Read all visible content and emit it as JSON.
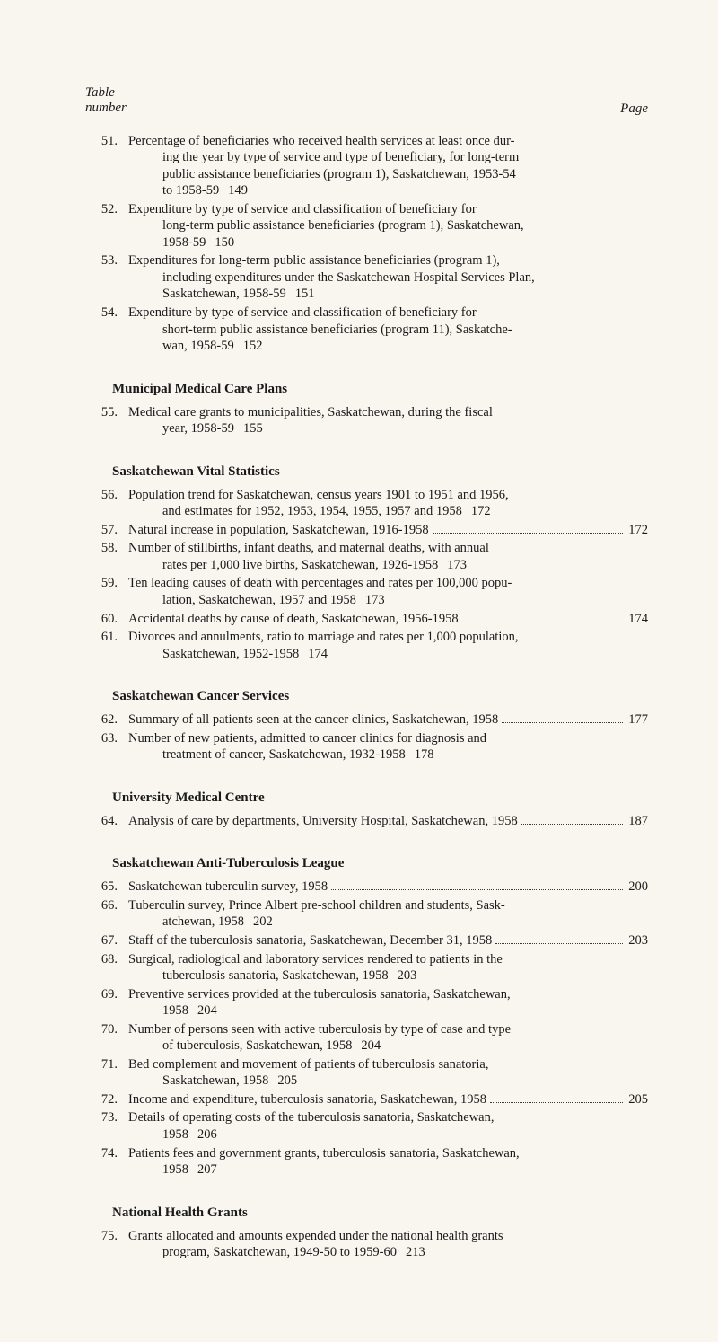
{
  "header": {
    "top_left_line1": "Table",
    "top_left_line2": "number",
    "top_right": "Page"
  },
  "sections": [
    {
      "entries": [
        {
          "num": "51.",
          "lines": [
            "Percentage of beneficiaries who received health services at least once dur-",
            "ing the year by type of service and type of beneficiary, for long-term",
            "public assistance beneficiaries (program 1), Saskatchewan, 1953-54"
          ],
          "last": "to 1958-59",
          "page": "149"
        },
        {
          "num": "52.",
          "lines": [
            "Expenditure by type of service and classification of beneficiary for",
            "long-term public assistance beneficiaries (program 1), Saskatchewan,"
          ],
          "last": "1958-59",
          "page": "150"
        },
        {
          "num": "53.",
          "lines": [
            "Expenditures for long-term public assistance beneficiaries (program 1),",
            "including expenditures under the Saskatchewan Hospital Services Plan,"
          ],
          "last": "Saskatchewan, 1958-59",
          "page": "151"
        },
        {
          "num": "54.",
          "lines": [
            "Expenditure by type of service and classification of beneficiary for",
            "short-term public assistance beneficiaries (program 11), Saskatche-"
          ],
          "last": "wan, 1958-59",
          "page": "152"
        }
      ]
    },
    {
      "title": "Municipal Medical Care Plans",
      "entries": [
        {
          "num": "55.",
          "lines": [
            "Medical care grants to municipalities, Saskatchewan, during the fiscal"
          ],
          "last": "year, 1958-59",
          "page": "155"
        }
      ]
    },
    {
      "title": "Saskatchewan Vital Statistics",
      "entries": [
        {
          "num": "56.",
          "lines": [
            "Population trend for Saskatchewan, census years 1901 to 1951 and 1956,"
          ],
          "last": "and estimates for 1952, 1953, 1954, 1955, 1957 and 1958",
          "page": "172"
        },
        {
          "num": "57.",
          "lines": [],
          "last": "Natural increase in population, Saskatchewan, 1916-1958",
          "page": "172"
        },
        {
          "num": "58.",
          "lines": [
            "Number of stillbirths, infant deaths, and maternal deaths, with annual"
          ],
          "last": "rates per 1,000 live births, Saskatchewan, 1926-1958",
          "page": "173"
        },
        {
          "num": "59.",
          "lines": [
            "Ten leading causes of death with percentages and rates per 100,000 popu-"
          ],
          "last": "lation, Saskatchewan, 1957 and 1958",
          "page": "173"
        },
        {
          "num": "60.",
          "lines": [],
          "last": "Accidental deaths by cause of death, Saskatchewan, 1956-1958",
          "page": "174"
        },
        {
          "num": "61.",
          "lines": [
            "Divorces and annulments, ratio to marriage and rates per 1,000 population,"
          ],
          "last": "Saskatchewan, 1952-1958",
          "page": "174"
        }
      ]
    },
    {
      "title": "Saskatchewan Cancer Services",
      "entries": [
        {
          "num": "62.",
          "lines": [],
          "last": "Summary of all patients seen at the cancer clinics, Saskatchewan, 1958",
          "page": "177"
        },
        {
          "num": "63.",
          "lines": [
            "Number of new patients, admitted to cancer clinics for diagnosis and"
          ],
          "last": "treatment of cancer, Saskatchewan, 1932-1958",
          "page": "178"
        }
      ]
    },
    {
      "title": "University Medical Centre",
      "entries": [
        {
          "num": "64.",
          "lines": [],
          "last": "Analysis of care by departments, University Hospital, Saskatchewan, 1958",
          "page": "187"
        }
      ]
    },
    {
      "title": "Saskatchewan Anti-Tuberculosis League",
      "entries": [
        {
          "num": "65.",
          "lines": [],
          "last": "Saskatchewan tuberculin survey, 1958",
          "page": "200"
        },
        {
          "num": "66.",
          "lines": [
            "Tuberculin survey, Prince Albert pre-school children and students, Sask-"
          ],
          "last": "atchewan, 1958",
          "page": "202"
        },
        {
          "num": "67.",
          "lines": [],
          "last": "Staff of the tuberculosis sanatoria, Saskatchewan, December 31, 1958",
          "page": "203"
        },
        {
          "num": "68.",
          "lines": [
            "Surgical, radiological and laboratory services rendered to patients in the"
          ],
          "last": "tuberculosis sanatoria, Saskatchewan, 1958",
          "page": "203"
        },
        {
          "num": "69.",
          "lines": [
            "Preventive services provided at the tuberculosis sanatoria, Saskatchewan,"
          ],
          "last": "1958",
          "page": "204"
        },
        {
          "num": "70.",
          "lines": [
            "Number of persons seen with active tuberculosis by type of case and type"
          ],
          "last": "of tuberculosis, Saskatchewan, 1958",
          "page": "204"
        },
        {
          "num": "71.",
          "lines": [
            "Bed complement and movement of patients of tuberculosis sanatoria,"
          ],
          "last": "Saskatchewan, 1958",
          "page": "205"
        },
        {
          "num": "72.",
          "lines": [],
          "last": "Income and expenditure, tuberculosis sanatoria, Saskatchewan, 1958",
          "page": "205"
        },
        {
          "num": "73.",
          "lines": [
            "Details of operating costs of the tuberculosis sanatoria, Saskatchewan,"
          ],
          "last": "1958",
          "page": "206"
        },
        {
          "num": "74.",
          "lines": [
            "Patients fees and government grants, tuberculosis sanatoria, Saskatchewan,"
          ],
          "last": "1958",
          "page": "207"
        }
      ]
    },
    {
      "title": "National Health Grants",
      "entries": [
        {
          "num": "75.",
          "lines": [
            "Grants allocated and amounts expended under the national health grants"
          ],
          "last": "program, Saskatchewan, 1949-50 to 1959-60",
          "page": "213"
        }
      ]
    }
  ]
}
